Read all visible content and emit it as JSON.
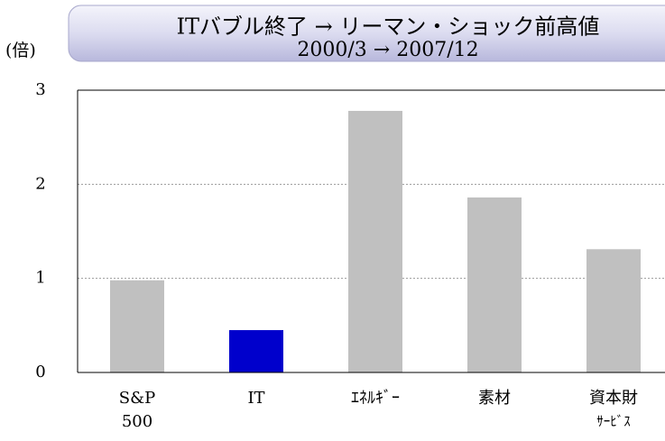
{
  "chart_data": {
    "type": "bar",
    "title": [
      "ITバブル終了 → リーマン・ショック前高値",
      "2000/3 → 2007/12"
    ],
    "y_label": "(倍)",
    "categories": [
      [
        "S&P",
        "500"
      ],
      [
        "IT"
      ],
      [
        "ｴﾈﾙｷﾞｰ"
      ],
      [
        "素材"
      ],
      [
        "資本財",
        "ｻｰﾋﾞｽ"
      ]
    ],
    "values": [
      0.98,
      0.45,
      2.78,
      1.86,
      1.31
    ],
    "colors": [
      "#c0c0c0",
      "#0000cc",
      "#c0c0c0",
      "#c0c0c0",
      "#c0c0c0"
    ],
    "ylim": [
      0,
      3
    ],
    "yticks": [
      0,
      1,
      2,
      3
    ],
    "grid": true
  }
}
